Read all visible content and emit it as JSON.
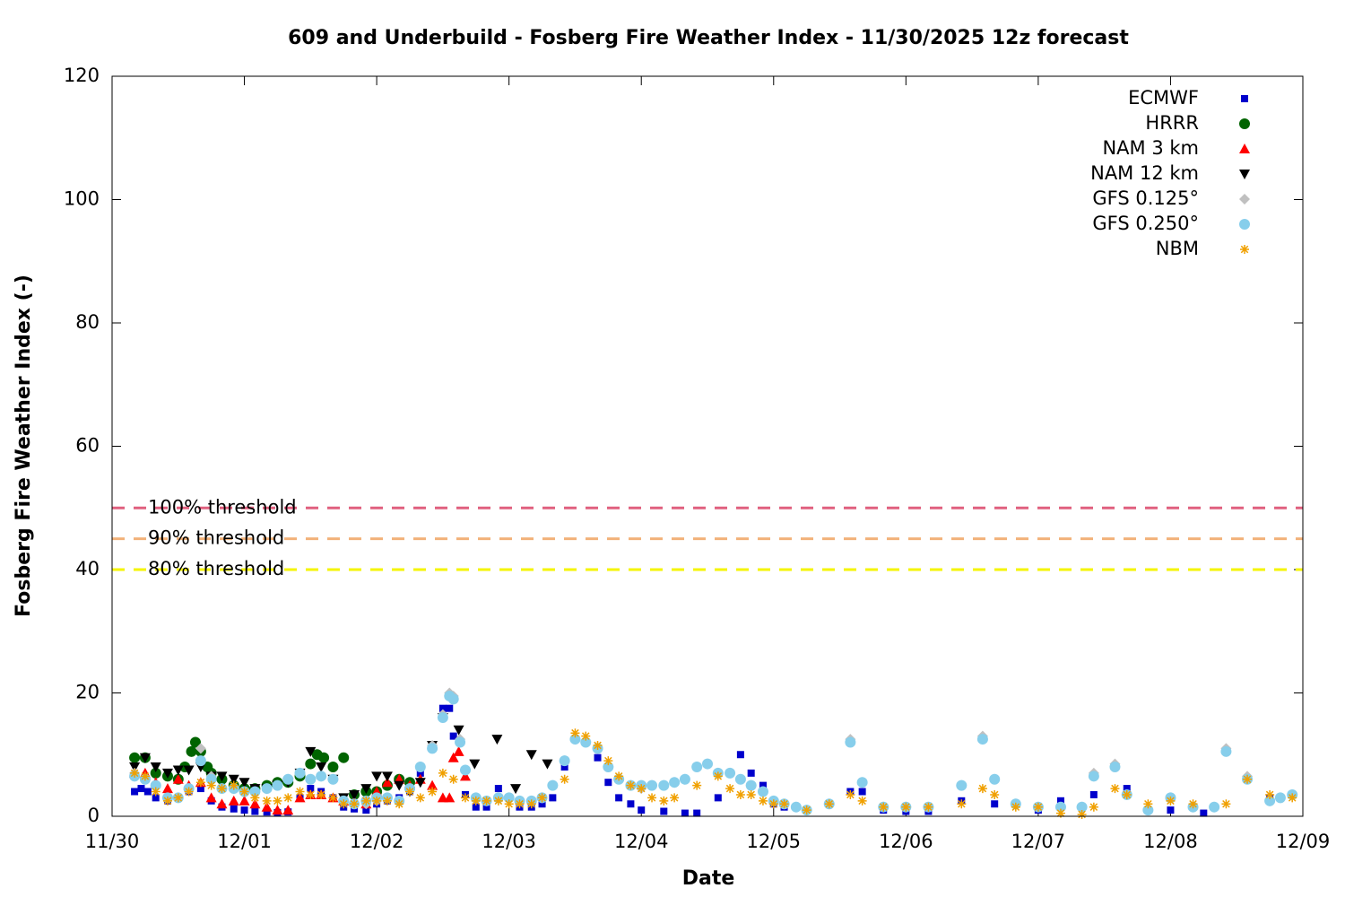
{
  "chart_data": {
    "type": "scatter",
    "title": "609 and Underbuild - Fosberg Fire Weather Index - 11/30/2025 12z forecast",
    "x_label": "Date",
    "y_label": "Fosberg Fire Weather Index (-)",
    "xlim": [
      0,
      9
    ],
    "xticks": [
      {
        "value": 0,
        "label": "11/30"
      },
      {
        "value": 1,
        "label": "12/01"
      },
      {
        "value": 2,
        "label": "12/02"
      },
      {
        "value": 3,
        "label": "12/03"
      },
      {
        "value": 4,
        "label": "12/04"
      },
      {
        "value": 5,
        "label": "12/05"
      },
      {
        "value": 6,
        "label": "12/06"
      },
      {
        "value": 7,
        "label": "12/07"
      },
      {
        "value": 8,
        "label": "12/08"
      },
      {
        "value": 9,
        "label": "12/09"
      }
    ],
    "ylim": [
      0,
      120
    ],
    "yticks": [
      0,
      20,
      40,
      60,
      80,
      100,
      120
    ],
    "legend": "top-right",
    "thresholds": [
      {
        "label": "100% threshold",
        "value": 50,
        "color": "#e0607f"
      },
      {
        "label": "90% threshold",
        "value": 45,
        "color": "#f2b27a"
      },
      {
        "label": "80% threshold",
        "value": 40,
        "color": "#f5f500"
      }
    ],
    "series": [
      {
        "name": "ECMWF",
        "color": "#0000cc",
        "marker": "square",
        "x": [
          0.17,
          0.22,
          0.27,
          0.33,
          0.42,
          0.5,
          0.58,
          0.67,
          0.75,
          0.83,
          0.92,
          1.0,
          1.08,
          1.17,
          1.25,
          1.33,
          1.42,
          1.5,
          1.58,
          1.67,
          1.75,
          1.83,
          1.92,
          2.0,
          2.08,
          2.17,
          2.25,
          2.33,
          2.42,
          2.5,
          2.55,
          2.58,
          2.67,
          2.75,
          2.83,
          2.92,
          3.0,
          3.08,
          3.17,
          3.25,
          3.33,
          3.42,
          3.5,
          3.58,
          3.67,
          3.75,
          3.83,
          3.92,
          4.0,
          4.17,
          4.33,
          4.42,
          4.58,
          4.75,
          4.83,
          4.92,
          5.0,
          5.08,
          5.17,
          5.25,
          5.42,
          5.58,
          5.67,
          5.83,
          6.0,
          6.17,
          6.42,
          6.67,
          6.83,
          7.0,
          7.17,
          7.42,
          7.58,
          7.67,
          7.83,
          8.0,
          8.17,
          8.25,
          8.42,
          8.58,
          8.75,
          8.92
        ],
        "values": [
          4,
          4.5,
          4,
          3,
          2.5,
          3,
          4,
          4.5,
          2.5,
          1.5,
          1.2,
          1,
          0.8,
          0.7,
          0.6,
          0.7,
          3,
          4.5,
          4,
          3,
          1.5,
          1.2,
          1,
          2,
          2.5,
          3,
          4,
          7,
          11.5,
          17.5,
          17.5,
          13,
          3.5,
          1.5,
          1.5,
          4.5,
          3,
          1.5,
          1.5,
          2,
          3,
          8,
          12.5,
          12,
          9.5,
          5.5,
          3,
          2,
          1,
          0.8,
          0.5,
          0.5,
          3,
          10,
          7,
          5,
          2,
          1.5,
          1.5,
          1,
          2,
          4,
          4,
          1,
          0.8,
          0.8,
          2.5,
          2,
          2,
          1,
          2.5,
          3.5,
          8,
          4.5,
          1,
          1,
          1.5,
          0.5,
          10.5,
          6,
          3,
          3.5
        ]
      },
      {
        "name": "HRRR",
        "color": "#006400",
        "marker": "circle",
        "x": [
          0.17,
          0.25,
          0.33,
          0.42,
          0.5,
          0.55,
          0.6,
          0.63,
          0.67,
          0.72,
          0.75,
          0.83,
          0.92,
          1.0,
          1.08,
          1.17,
          1.25,
          1.33,
          1.42,
          1.5,
          1.55,
          1.6,
          1.67,
          1.75,
          1.83,
          1.92,
          2.0,
          2.08,
          2.17,
          2.25
        ],
        "values": [
          9.5,
          9.5,
          7,
          6.5,
          6,
          8,
          10.5,
          12,
          10.5,
          8,
          7,
          6,
          5,
          4.5,
          4.5,
          5,
          5.5,
          5.5,
          6.5,
          8.5,
          10,
          9.5,
          8,
          9.5,
          3.5,
          4,
          4,
          5,
          6,
          5.5
        ]
      },
      {
        "name": "NAM 3 km",
        "color": "#ff0000",
        "marker": "triangle-up",
        "x": [
          0.17,
          0.25,
          0.33,
          0.42,
          0.5,
          0.58,
          0.67,
          0.75,
          0.83,
          0.92,
          1.0,
          1.08,
          1.17,
          1.25,
          1.33,
          1.42,
          1.5,
          1.58,
          1.67,
          1.75,
          1.83,
          1.92,
          2.0,
          2.08,
          2.17,
          2.25,
          2.33,
          2.42,
          2.5,
          2.55,
          2.58,
          2.62,
          2.67
        ],
        "values": [
          7,
          7,
          5.5,
          4.5,
          6,
          5,
          5.5,
          3,
          2,
          2.5,
          2.5,
          2,
          1.5,
          1,
          1,
          3,
          3.5,
          3.5,
          3,
          2.5,
          2.5,
          2,
          4,
          5.5,
          6,
          5,
          6,
          5,
          3,
          3,
          9.5,
          10.5,
          6.5
        ]
      },
      {
        "name": "NAM 12 km",
        "color": "#000000",
        "marker": "triangle-down",
        "x": [
          0.17,
          0.25,
          0.33,
          0.42,
          0.5,
          0.58,
          0.67,
          0.75,
          0.83,
          0.92,
          1.0,
          1.08,
          1.17,
          1.25,
          1.33,
          1.42,
          1.5,
          1.58,
          1.67,
          1.75,
          1.83,
          1.92,
          2.0,
          2.08,
          2.17,
          2.25,
          2.33,
          2.42,
          2.5,
          2.62,
          2.74,
          2.91,
          3.05,
          3.17,
          3.29
        ],
        "values": [
          8,
          9.5,
          8,
          7,
          7.5,
          7.5,
          8,
          6.5,
          6.5,
          6,
          5.5,
          4.5,
          4.5,
          5,
          5.5,
          7,
          10.5,
          8,
          6,
          3,
          3.5,
          4.5,
          6.5,
          6.5,
          5,
          4,
          5.5,
          11.5,
          16,
          14,
          8.5,
          12.5,
          4.5,
          10,
          8.5
        ]
      },
      {
        "name": "GFS 0.125°",
        "color": "#c0c0c0",
        "marker": "diamond",
        "x": [
          0.17,
          0.25,
          0.33,
          0.42,
          0.5,
          0.58,
          0.67,
          0.75,
          0.83,
          0.92,
          1.0,
          1.08,
          1.17,
          1.25,
          1.33,
          1.42,
          1.5,
          1.58,
          1.67,
          1.75,
          1.83,
          1.92,
          2.0,
          2.08,
          2.17,
          2.25,
          2.33,
          2.42,
          2.5,
          2.55,
          2.58,
          2.63,
          2.67,
          2.75,
          2.83,
          2.92,
          3.0,
          3.08,
          3.17,
          3.25,
          3.33,
          3.42,
          3.5,
          3.58,
          3.67,
          3.75,
          3.83,
          3.92,
          4.0,
          4.08,
          4.17,
          4.25,
          4.33,
          4.42,
          4.5,
          4.58,
          4.67,
          4.75,
          4.83,
          4.92,
          5.0,
          5.08,
          5.17,
          5.25,
          5.42,
          5.58,
          5.67,
          5.83,
          6.0,
          6.17,
          6.42,
          6.58,
          6.67,
          6.83,
          7.0,
          7.17,
          7.33,
          7.42,
          7.58,
          7.67,
          7.83,
          8.0,
          8.17,
          8.33,
          8.42,
          8.58,
          8.75,
          8.83,
          8.92
        ],
        "values": [
          7,
          6,
          5,
          3,
          3,
          4.5,
          11,
          6.5,
          4.5,
          4.5,
          4,
          4,
          4.5,
          5,
          6,
          7,
          6,
          6.5,
          6,
          2.5,
          2,
          2,
          2.5,
          3,
          2.5,
          4.5,
          8,
          11.5,
          16.5,
          20,
          19.5,
          12.5,
          7.5,
          3,
          2.5,
          3,
          3,
          2.5,
          2.5,
          3,
          5,
          9,
          12.5,
          12,
          11,
          8,
          6,
          5,
          4.5,
          5,
          5,
          5.5,
          6,
          8,
          8.5,
          7,
          7,
          6,
          5,
          4,
          2.5,
          2,
          1.5,
          1,
          2,
          12.5,
          5.5,
          1.5,
          1.5,
          1.5,
          5,
          13,
          6,
          2,
          1.5,
          1.5,
          1.5,
          7,
          8.5,
          3.5,
          1,
          3,
          1.5,
          1.5,
          11,
          6.5,
          2.5,
          3,
          3.5
        ]
      },
      {
        "name": "GFS 0.250°",
        "color": "#87ceeb",
        "marker": "circle",
        "x": [
          0.17,
          0.25,
          0.33,
          0.42,
          0.5,
          0.58,
          0.67,
          0.75,
          0.83,
          0.92,
          1.0,
          1.08,
          1.17,
          1.25,
          1.33,
          1.42,
          1.5,
          1.58,
          1.67,
          1.75,
          1.83,
          1.92,
          2.0,
          2.08,
          2.17,
          2.25,
          2.33,
          2.42,
          2.5,
          2.55,
          2.58,
          2.63,
          2.67,
          2.75,
          2.83,
          2.92,
          3.0,
          3.08,
          3.17,
          3.25,
          3.33,
          3.42,
          3.5,
          3.58,
          3.67,
          3.75,
          3.83,
          3.92,
          4.0,
          4.08,
          4.17,
          4.25,
          4.33,
          4.42,
          4.5,
          4.58,
          4.67,
          4.75,
          4.83,
          4.92,
          5.0,
          5.08,
          5.17,
          5.25,
          5.42,
          5.58,
          5.67,
          5.83,
          6.0,
          6.17,
          6.42,
          6.58,
          6.67,
          6.83,
          7.0,
          7.17,
          7.33,
          7.42,
          7.58,
          7.67,
          7.83,
          8.0,
          8.17,
          8.33,
          8.42,
          8.58,
          8.75,
          8.83,
          8.92
        ],
        "values": [
          6.5,
          6,
          5,
          3,
          3,
          4.5,
          9,
          6,
          4.5,
          4.5,
          4,
          4,
          4.5,
          5,
          6,
          7,
          6,
          6.5,
          6,
          2.5,
          2,
          2.5,
          3,
          3,
          2.5,
          4.5,
          8,
          11,
          16,
          19.5,
          19,
          12,
          7.5,
          3,
          2.5,
          3,
          3,
          2.5,
          2.5,
          3,
          5,
          9,
          12.5,
          12,
          11,
          8,
          6,
          5,
          5,
          5,
          5,
          5.5,
          6,
          8,
          8.5,
          7,
          7,
          6,
          5,
          4,
          2.5,
          2,
          1.5,
          1,
          2,
          12,
          5.5,
          1.5,
          1.5,
          1.5,
          5,
          12.5,
          6,
          2,
          1.5,
          1.5,
          1.5,
          6.5,
          8,
          3.5,
          1,
          3,
          1.5,
          1.5,
          10.5,
          6,
          2.5,
          3,
          3.5
        ]
      },
      {
        "name": "NBM",
        "color": "#f0a000",
        "marker": "star",
        "x": [
          0.17,
          0.25,
          0.33,
          0.42,
          0.5,
          0.58,
          0.67,
          0.75,
          0.83,
          0.92,
          1.0,
          1.08,
          1.17,
          1.25,
          1.33,
          1.42,
          1.5,
          1.58,
          1.67,
          1.75,
          1.83,
          1.92,
          2.0,
          2.08,
          2.17,
          2.25,
          2.33,
          2.42,
          2.5,
          2.58,
          2.67,
          2.75,
          2.83,
          2.92,
          3.0,
          3.08,
          3.17,
          3.25,
          3.42,
          3.5,
          3.58,
          3.67,
          3.75,
          3.83,
          3.92,
          4.0,
          4.08,
          4.17,
          4.25,
          4.42,
          4.58,
          4.67,
          4.75,
          4.83,
          4.92,
          5.0,
          5.08,
          5.25,
          5.42,
          5.58,
          5.67,
          5.83,
          6.0,
          6.17,
          6.42,
          6.58,
          6.67,
          6.83,
          7.0,
          7.17,
          7.33,
          7.42,
          7.58,
          7.67,
          7.83,
          8.0,
          8.17,
          8.42,
          8.58,
          8.75,
          8.92
        ],
        "values": [
          7,
          6.5,
          4,
          2.5,
          3,
          4,
          5.5,
          5,
          4.5,
          5,
          4,
          3,
          2.5,
          2.5,
          3,
          4,
          3.5,
          3.5,
          3,
          2,
          2,
          2.5,
          2.5,
          2.5,
          2,
          4,
          3,
          4,
          7,
          6,
          3,
          2.5,
          2.5,
          2.5,
          2,
          2,
          2,
          3,
          6,
          13.5,
          13,
          11.5,
          9,
          6.5,
          5,
          4.5,
          3,
          2.5,
          3,
          5,
          6.5,
          4.5,
          3.5,
          3.5,
          2.5,
          2,
          2,
          1,
          2,
          3.5,
          2.5,
          1.5,
          1.5,
          1.5,
          2,
          4.5,
          3.5,
          1.5,
          1.5,
          0.5,
          0.3,
          1.5,
          4.5,
          3.5,
          2,
          2.5,
          2,
          2,
          6,
          3.5,
          3
        ]
      }
    ]
  }
}
